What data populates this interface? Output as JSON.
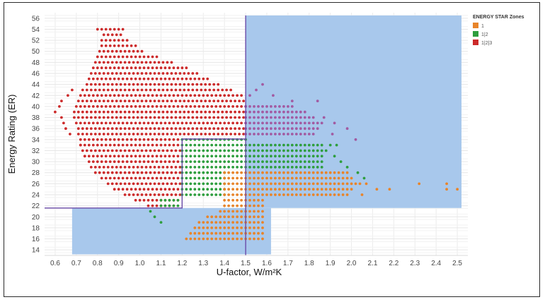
{
  "chart_data": {
    "type": "scatter",
    "xlabel": "U-factor, W/m²K",
    "ylabel": "Energy Rating (ER)",
    "xlim": [
      0.55,
      2.55
    ],
    "ylim": [
      13,
      57
    ],
    "xticks": [
      0.6,
      0.7,
      0.8,
      0.9,
      1.0,
      1.1,
      1.2,
      1.3,
      1.4,
      1.5,
      1.6,
      1.7,
      1.8,
      1.9,
      2.0,
      2.1,
      2.2,
      2.3,
      2.4,
      2.5
    ],
    "xtick_labels": [
      "0.6",
      "0.7",
      "0.8",
      "0.9",
      "1.0",
      "1.1",
      "1.2",
      "1.3",
      "1.4",
      "1.5",
      "1.6",
      "1.7",
      "1.8",
      "1.9",
      "2.0",
      "2.1",
      "2.2",
      "2.3",
      "2.4",
      "2.5"
    ],
    "yticks": [
      14,
      16,
      18,
      20,
      22,
      24,
      26,
      28,
      30,
      32,
      34,
      36,
      38,
      40,
      42,
      44,
      46,
      48,
      50,
      52,
      54,
      56
    ],
    "ytick_labels": [
      "14",
      "16",
      "18",
      "20",
      "22",
      "24",
      "26",
      "28",
      "30",
      "32",
      "34",
      "36",
      "38",
      "40",
      "42",
      "44",
      "46",
      "48",
      "50",
      "52",
      "54",
      "56"
    ],
    "grid": true,
    "legend": {
      "title": "ENERGY STAR Zones",
      "position": "top-right",
      "items": [
        {
          "label": "1",
          "color": "#e8842a"
        },
        {
          "label": "1|2",
          "color": "#2e9e3e"
        },
        {
          "label": "1|2|3",
          "color": "#cc2b2b"
        }
      ]
    },
    "zone_regions": [
      {
        "x": [
          1.5,
          2.52
        ],
        "y": [
          21.6,
          56.5
        ],
        "color": "#a8c8ec"
      },
      {
        "x": [
          0.68,
          1.62
        ],
        "y": [
          13.2,
          21.6
        ],
        "color": "#a8c8ec"
      }
    ],
    "reference_lines": [
      {
        "points": [
          [
            1.5,
            13.0
          ],
          [
            1.5,
            56.5
          ]
        ],
        "color": "#6a4aa8"
      },
      {
        "points": [
          [
            0.55,
            21.6
          ],
          [
            1.2,
            21.6
          ],
          [
            1.2,
            34.1
          ],
          [
            1.5,
            34.1
          ]
        ],
        "color": "#6a4aa8"
      }
    ],
    "series_order": [
      "1|2|3",
      "1|2",
      "1"
    ],
    "series": [
      {
        "name": "1|2|3",
        "color": "#cc2b2b",
        "rows": [
          [
            22,
            1.04,
            1.16
          ],
          [
            23,
            0.98,
            1.19
          ],
          [
            24,
            0.93,
            1.19
          ],
          [
            25,
            0.88,
            1.19
          ],
          [
            26,
            0.85,
            1.19
          ],
          [
            27,
            0.82,
            1.19
          ],
          [
            28,
            0.79,
            1.19
          ],
          [
            29,
            0.77,
            1.19
          ],
          [
            30,
            0.76,
            1.19
          ],
          [
            31,
            0.74,
            1.19
          ],
          [
            32,
            0.73,
            1.19
          ],
          [
            33,
            0.72,
            1.19
          ],
          [
            34,
            0.72,
            1.19
          ],
          [
            35,
            0.71,
            1.5
          ],
          [
            36,
            0.71,
            1.5
          ],
          [
            37,
            0.7,
            1.5
          ],
          [
            38,
            0.69,
            1.5
          ],
          [
            39,
            0.69,
            1.5
          ],
          [
            40,
            0.7,
            1.5
          ],
          [
            41,
            0.71,
            1.5
          ],
          [
            42,
            0.72,
            1.48
          ],
          [
            43,
            0.73,
            1.43
          ],
          [
            44,
            0.75,
            1.38
          ],
          [
            45,
            0.76,
            1.32
          ],
          [
            46,
            0.77,
            1.27
          ],
          [
            47,
            0.78,
            1.22
          ],
          [
            48,
            0.79,
            1.15
          ],
          [
            49,
            0.8,
            1.08
          ],
          [
            50,
            0.81,
            1.02
          ],
          [
            51,
            0.82,
            0.98
          ],
          [
            52,
            0.82,
            0.95
          ],
          [
            53,
            0.83,
            0.92
          ],
          [
            54,
            0.8,
            0.92
          ]
        ],
        "extra_points": [
          [
            0.6,
            39
          ],
          [
            0.62,
            40
          ],
          [
            0.63,
            41
          ],
          [
            0.63,
            38
          ],
          [
            0.64,
            37
          ],
          [
            0.65,
            36
          ],
          [
            0.66,
            42
          ],
          [
            0.67,
            35
          ],
          [
            0.68,
            43
          ],
          [
            0.74,
            31
          ],
          [
            0.72,
            33
          ]
        ]
      },
      {
        "name": "1|2",
        "color": "#2e9e3e",
        "rows": [
          [
            22,
            1.1,
            1.19
          ],
          [
            23,
            1.1,
            1.19
          ],
          [
            24,
            1.2,
            1.4
          ],
          [
            25,
            1.2,
            1.4
          ],
          [
            26,
            1.2,
            1.4
          ],
          [
            27,
            1.2,
            1.4
          ],
          [
            28,
            1.2,
            1.4
          ],
          [
            29,
            1.2,
            1.86
          ],
          [
            30,
            1.2,
            1.86
          ],
          [
            31,
            1.2,
            1.86
          ],
          [
            32,
            1.2,
            1.86
          ],
          [
            33,
            1.2,
            1.86
          ],
          [
            34,
            1.2,
            1.5
          ]
        ],
        "extra_points": [
          [
            1.05,
            21
          ],
          [
            1.07,
            20
          ],
          [
            1.1,
            19
          ],
          [
            1.88,
            32
          ],
          [
            1.92,
            31
          ],
          [
            1.95,
            30
          ],
          [
            1.98,
            29
          ],
          [
            2.03,
            28
          ],
          [
            2.06,
            27
          ],
          [
            1.9,
            33
          ],
          [
            1.93,
            33
          ]
        ]
      },
      {
        "name": "1",
        "color": "#e8842a",
        "rows": [
          [
            16,
            1.22,
            1.59
          ],
          [
            17,
            1.24,
            1.59
          ],
          [
            18,
            1.26,
            1.59
          ],
          [
            19,
            1.28,
            1.59
          ],
          [
            20,
            1.32,
            1.59
          ],
          [
            21,
            1.38,
            1.59
          ],
          [
            22,
            1.4,
            1.59
          ],
          [
            23,
            1.4,
            1.59
          ],
          [
            24,
            1.4,
            1.98
          ],
          [
            25,
            1.4,
            2.0
          ],
          [
            26,
            1.4,
            2.05
          ],
          [
            27,
            1.4,
            2.0
          ],
          [
            28,
            1.4,
            1.98
          ]
        ],
        "extra_points": [
          [
            2.07,
            26
          ],
          [
            2.12,
            25
          ],
          [
            2.18,
            25
          ],
          [
            2.32,
            26
          ],
          [
            2.45,
            26
          ],
          [
            2.45,
            25
          ],
          [
            2.5,
            25
          ],
          [
            2.05,
            24
          ]
        ]
      },
      {
        "name": "1|2|3",
        "color": "#a25ba2",
        "rows": [
          [
            35,
            1.5,
            1.82
          ],
          [
            36,
            1.5,
            1.85
          ],
          [
            37,
            1.5,
            1.86
          ],
          [
            38,
            1.5,
            1.82
          ],
          [
            39,
            1.5,
            1.78
          ],
          [
            40,
            1.5,
            1.72
          ]
        ],
        "extra_points": [
          [
            1.52,
            42
          ],
          [
            1.55,
            43
          ],
          [
            1.58,
            44
          ],
          [
            1.87,
            38
          ],
          [
            1.92,
            37
          ],
          [
            1.98,
            36
          ],
          [
            1.91,
            35
          ],
          [
            2.02,
            34
          ],
          [
            1.84,
            41
          ],
          [
            1.63,
            42
          ],
          [
            1.72,
            41
          ]
        ]
      }
    ]
  }
}
